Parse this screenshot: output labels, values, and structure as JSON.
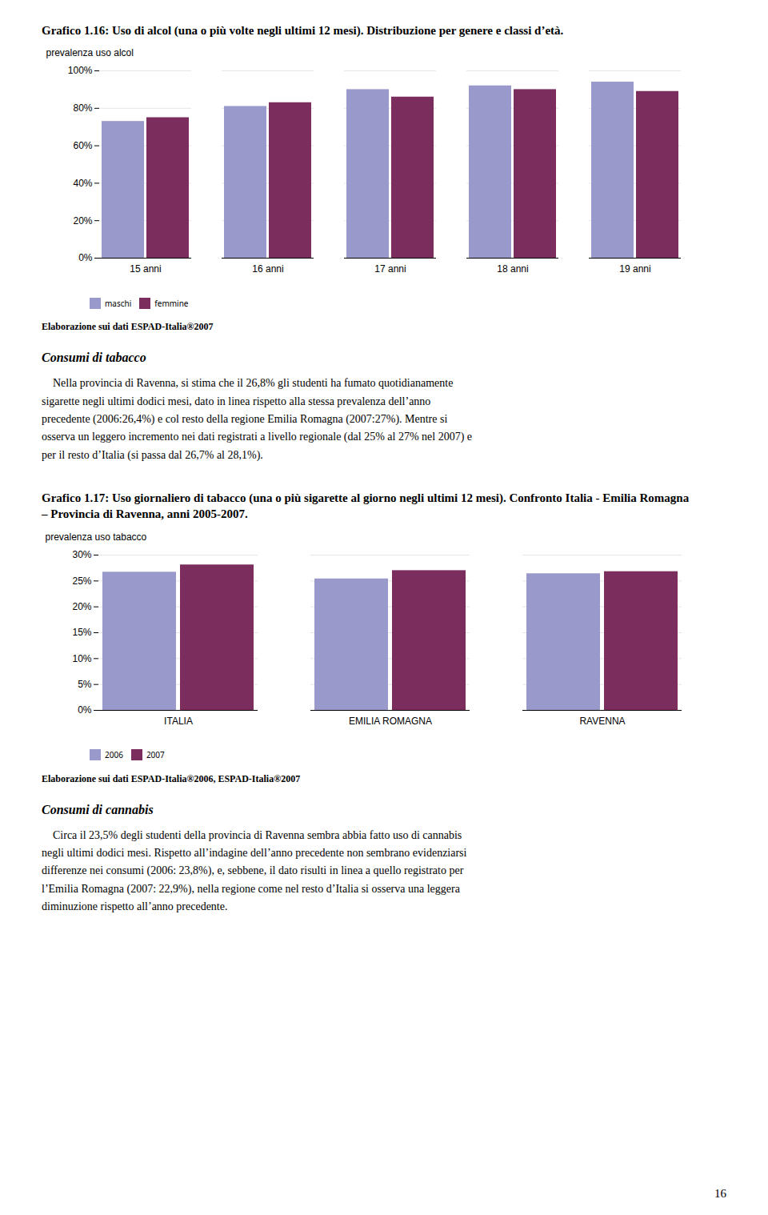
{
  "chart_data": [
    {
      "type": "bar",
      "title": "Grafico 1.16: Uso di alcol (una o più volte negli ultimi 12 mesi). Distribuzione per genere e classi d’età.",
      "categories": [
        "15 anni",
        "16 anni",
        "17 anni",
        "18 anni",
        "19 anni"
      ],
      "series": [
        {
          "name": "maschi",
          "color": "#9999CC",
          "values": [
            0.73,
            0.81,
            0.9,
            0.92,
            0.94
          ]
        },
        {
          "name": "femmine",
          "color": "#7B2D5E",
          "values": [
            0.75,
            0.83,
            0.86,
            0.9,
            0.89
          ]
        }
      ],
      "ylabel": "prevalenza uso alcol",
      "ylim": [
        0,
        1.0
      ],
      "yticks": [
        {
          "value": 0.0,
          "label": "0%"
        },
        {
          "value": 0.2,
          "label": "20%"
        },
        {
          "value": 0.4,
          "label": "40%"
        },
        {
          "value": 0.6,
          "label": "60%"
        },
        {
          "value": 0.8,
          "label": "80%"
        },
        {
          "value": 1.0,
          "label": "100%"
        }
      ],
      "grid": true,
      "legend": "bottom",
      "annotations": [
        "Elaborazione sui dati ESPAD-Italia®2007"
      ]
    },
    {
      "type": "bar",
      "title": "Grafico 1.17: Uso giornaliero di tabacco (una o più sigarette al giorno negli ultimi 12 mesi). Confronto Italia - Emilia Romagna – Provincia di Ravenna, anni 2005-2007.",
      "categories": [
        "ITALIA",
        "EMILIA ROMAGNA",
        "RAVENNA"
      ],
      "series": [
        {
          "name": "2006",
          "color": "#9999CC",
          "values": [
            0.267,
            0.254,
            0.264
          ]
        },
        {
          "name": "2007",
          "color": "#7B2D5E",
          "values": [
            0.281,
            0.27,
            0.268
          ]
        }
      ],
      "ylabel": "prevalenza uso tabacco",
      "ylim": [
        0,
        0.3
      ],
      "yticks": [
        {
          "value": 0.0,
          "label": "0%"
        },
        {
          "value": 0.05,
          "label": "5%"
        },
        {
          "value": 0.1,
          "label": "10%"
        },
        {
          "value": 0.15,
          "label": "15%"
        },
        {
          "value": 0.2,
          "label": "20%"
        },
        {
          "value": 0.25,
          "label": "25%"
        },
        {
          "value": 0.3,
          "label": "30%"
        }
      ],
      "grid": true,
      "legend": "bottom",
      "annotations": [
        "Elaborazione sui dati ESPAD-Italia®2006, ESPAD-Italia®2007"
      ]
    }
  ],
  "text_blocks": [
    {
      "heading": "Consumi di tabacco",
      "lines": [
        "    Nella provincia di Ravenna, si stima che il 26,8% gli studenti ha fumato quotidianamente",
        "sigarette negli ultimi dodici mesi, dato in linea rispetto alla stessa prevalenza dell’anno",
        "precedente (2006:26,4%) e col resto della regione Emilia Romagna (2007:27%). Mentre si",
        "osserva un leggero incremento nei dati registrati a livello regionale (dal 25% al 27% nel 2007) e",
        "per il resto d’Italia (si passa dal 26,7% al 28,1%)."
      ]
    },
    {
      "heading": "Consumi di cannabis",
      "lines": [
        "    Circa il 23,5% degli studenti della provincia di Ravenna sembra abbia fatto uso di cannabis",
        "negli ultimi dodici mesi. Rispetto all’indagine dell’anno precedente non sembrano evidenziarsi",
        "differenze nei consumi (2006: 23,8%), e, sebbene, il dato risulti in linea a quello registrato per",
        "l’Emilia Romagna (2007: 22,9%), nella regione come nel resto d’Italia si osserva una leggera",
        "diminuzione rispetto all’anno precedente."
      ]
    }
  ],
  "page_number": "16"
}
